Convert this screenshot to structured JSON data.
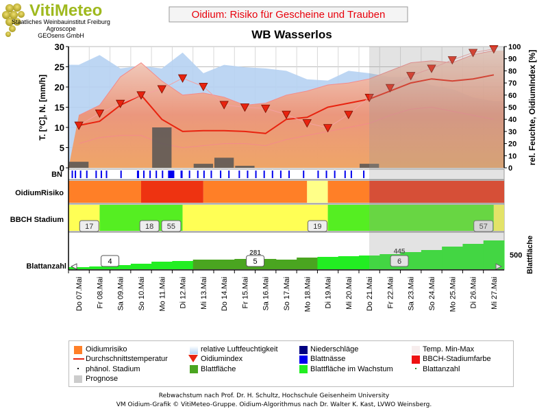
{
  "header": {
    "logo_title": "VitiMeteo",
    "logo_line1": "Staatliches Weinbauinstitut Freiburg",
    "logo_line2": "Agroscope",
    "logo_line3": "GEOsens GmbH",
    "chart_title": "Oidium: Risiko für Gescheine und Trauben",
    "station": "WB Wasserlos"
  },
  "chart_data": {
    "type": "line",
    "x": [
      "Do 07.Mai",
      "Fr 08.Mai",
      "Sa 09.Mai",
      "So 10.Mai",
      "Mo 11.Mai",
      "Di 12.Mai",
      "Mi 13.Mai",
      "Do 14.Mai",
      "Fr 15.Mai",
      "Sa 16.Mai",
      "So 17.Mai",
      "Mo 18.Mai",
      "Di 19.Mai",
      "Mi 20.Mai",
      "Do 21.Mai",
      "Fr 22.Mai",
      "Sa 23.Mai",
      "So 24.Mai",
      "Mo 25.Mai",
      "Di 26.Mai",
      "Mi 27.Mai"
    ],
    "ylabel": "T. [°C], N. [mm/h]",
    "ylim": [
      0,
      30
    ],
    "yticks": [
      0,
      5,
      10,
      15,
      20,
      25,
      30
    ],
    "y2label": "rel. Feuchte, OidiumIndex [%]",
    "y2lim": [
      0,
      100
    ],
    "y2ticks": [
      0,
      10,
      20,
      30,
      40,
      50,
      60,
      70,
      80,
      90,
      100
    ],
    "forecast_from": "Do 21.Mai",
    "series": [
      {
        "name": "Durchschnittstemperatur",
        "values": [
          10.5,
          11.5,
          15.5,
          18,
          12,
          9,
          9.2,
          9.2,
          9,
          8.5,
          12,
          12.5,
          15,
          16,
          17,
          19,
          21,
          22,
          21.5,
          22,
          23
        ]
      },
      {
        "name": "Temp. Min-Max",
        "min": [
          6,
          7.5,
          8,
          8,
          6,
          5,
          5.5,
          6,
          6,
          5.5,
          7,
          8,
          9,
          10,
          11,
          13,
          14.5,
          15,
          14,
          13,
          12
        ],
        "max": [
          13,
          15.5,
          22.5,
          26,
          21.5,
          18,
          18.5,
          17.5,
          15.5,
          16,
          18,
          19,
          20.5,
          21,
          22,
          24,
          26,
          26.5,
          26,
          28,
          29
        ]
      },
      {
        "name": "relative Luftfeuchtigkeit",
        "values": [
          85,
          93,
          82,
          84,
          82,
          95,
          78,
          85,
          83,
          82,
          80,
          73,
          72,
          80,
          78,
          75,
          75,
          68,
          65,
          58,
          55
        ]
      },
      {
        "name": "Oidiumindex",
        "values": [
          35,
          45,
          53,
          60,
          65,
          74,
          67,
          52,
          50,
          49,
          44,
          37,
          33,
          44,
          58,
          66,
          76,
          82,
          89,
          95,
          98
        ]
      },
      {
        "name": "Niederschläge",
        "values": [
          1.5,
          0,
          0,
          0,
          10,
          0,
          1,
          2.5,
          0.5,
          0,
          0,
          0,
          0,
          0,
          1,
          0,
          0,
          0,
          0,
          0,
          0
        ]
      }
    ],
    "bn_label": "BN",
    "rows": [
      {
        "label": "OidiumRisiko"
      },
      {
        "label": "BBCH Stadium",
        "stages": [
          "17",
          "18",
          "55",
          "19",
          "57"
        ]
      },
      {
        "label": "Blattanzahl",
        "counts": [
          "4",
          "5",
          "6"
        ],
        "leaf_area_values": [
          "281",
          "445"
        ],
        "y2label": "Blattfläche",
        "y2tick": "500"
      }
    ],
    "colors": {
      "temp_line": "#e8230f",
      "humidity": "#b4d2f2",
      "rain": "#4d4d4d",
      "risk": "#ff7f27",
      "risk_high": "#ee3311",
      "risk_low": "#ffff88",
      "bbch_yellow": "#ffff55",
      "bbch_green": "#55ee22",
      "leaf_area": "#4aa520",
      "leaf_growth": "#22ee22",
      "wetness": "#0000ee",
      "prognose": "#cccccc"
    }
  },
  "legend": {
    "col1": [
      "Oidiumrisiko",
      "Durchschnittstemperatur",
      "phänol. Stadium",
      "Prognose"
    ],
    "col2": [
      "relative Luftfeuchtigkeit",
      "Oidiumindex",
      "Blattfläche"
    ],
    "col3": [
      "Niederschläge",
      "Blattnässe",
      "Blattfläche im Wachstum"
    ],
    "col4": [
      "Temp. Min-Max",
      "BBCH-Stadiumfarbe",
      "Blattanzahl"
    ]
  },
  "footer": {
    "line1": "Rebwachstum nach Prof. Dr. H. Schultz, Hochschule Geisenheim University",
    "line2": "VM Oidium-Grafik © VitiMeteo-Gruppe. Oidium-Algorithmus nach Dr. Walter K. Kast, LVWO Weinsberg."
  }
}
